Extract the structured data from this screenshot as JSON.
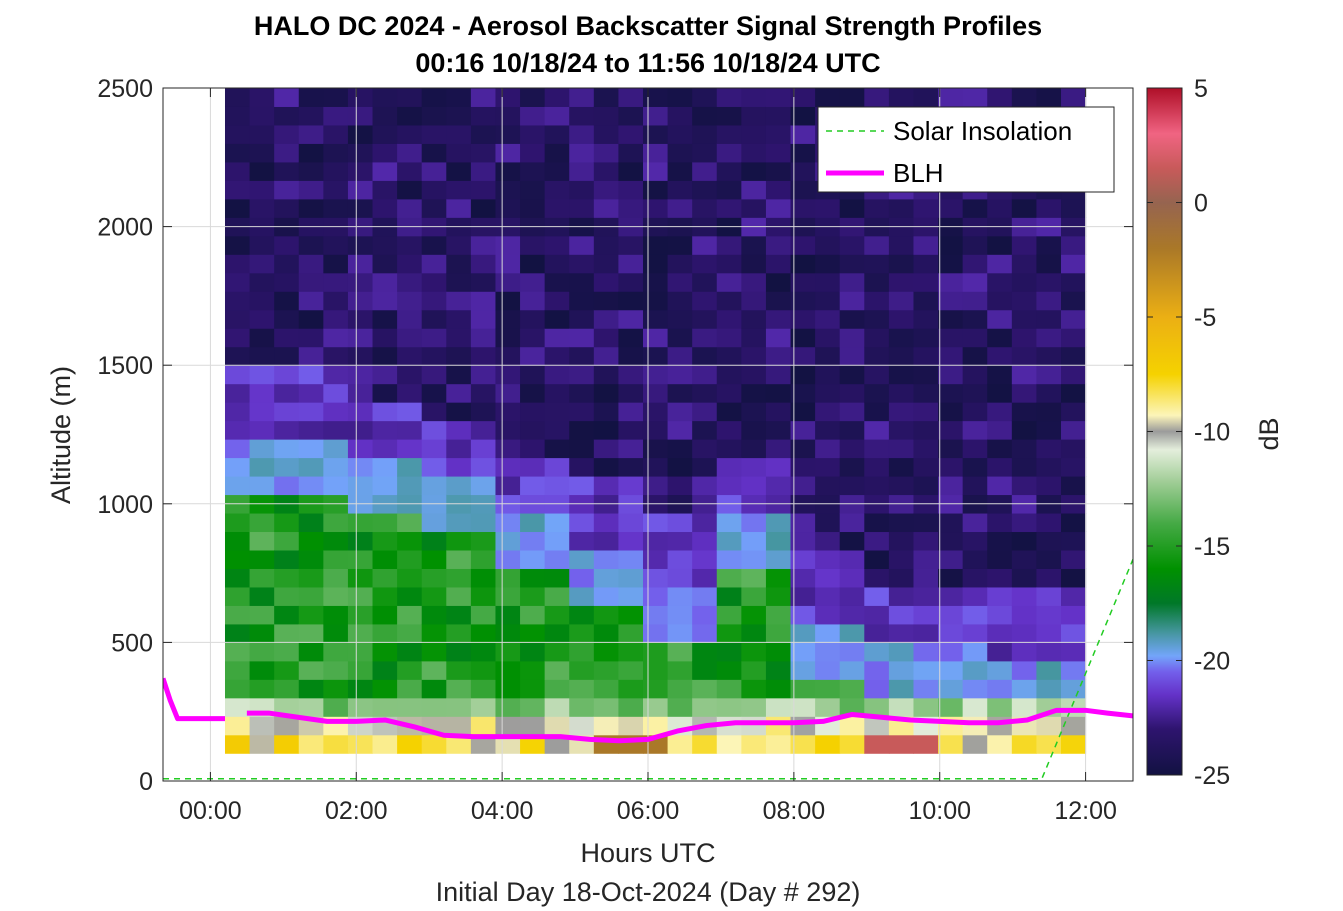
{
  "chart_data": {
    "type": "heatmap",
    "title": "HALO DC 2024 - Aerosol Backscatter Signal Strength Profiles",
    "subtitle": "00:16 10/18/24 to 11:56 10/18/24  UTC",
    "xlabel": "Hours UTC",
    "ylabel": "Altitude (m)",
    "footer": "Initial Day 18-Oct-2024 (Day # 292)",
    "xlim": [
      -0.65,
      12.65
    ],
    "ylim": [
      0,
      2500
    ],
    "x_ticks": [
      0,
      2,
      4,
      6,
      8,
      10,
      12
    ],
    "x_tick_labels": [
      "00:00",
      "02:00",
      "04:00",
      "06:00",
      "08:00",
      "10:00",
      "12:00"
    ],
    "y_ticks": [
      0,
      500,
      1000,
      1500,
      2000,
      2500
    ],
    "y_tick_labels": [
      "0",
      "500",
      "1000",
      "1500",
      "2000",
      "2500"
    ],
    "grid": true,
    "colorbar": {
      "label": "dB",
      "range": [
        -25,
        5
      ],
      "ticks": [
        5,
        0,
        -5,
        -10,
        -15,
        -20,
        -25
      ],
      "tick_labels": [
        "5",
        "0",
        "-5",
        "-10",
        "-15",
        "-20",
        "-25"
      ]
    },
    "heatmap": {
      "x_start_hour": 0.2,
      "x_end_hour": 12.0,
      "altitude_min": 100,
      "altitude_max": 2500,
      "note_values": "signal strength in dB, estimated per altitude band and time"
    },
    "legend": {
      "placement": "top-right",
      "entries": [
        {
          "label": "Solar Insolation",
          "color": "#22cc22",
          "style": "dashed"
        },
        {
          "label": "BLH",
          "color": "#ff00ff",
          "style": "solid"
        }
      ]
    },
    "series": [
      {
        "name": "BLH",
        "color": "#ff00ff",
        "segments": [
          {
            "x": [
              -0.65,
              -0.55,
              -0.45,
              0.2
            ],
            "y": [
              370,
              290,
              225,
              225
            ]
          },
          {
            "x": [
              0.5,
              0.8,
              1.2,
              1.6,
              2.0,
              2.4,
              2.8,
              3.2,
              3.6,
              4.0,
              4.4,
              4.8,
              5.2,
              5.6,
              6.0,
              6.4,
              6.8,
              7.2,
              7.6,
              8.0,
              8.4,
              8.8,
              9.2,
              9.6,
              10.0,
              10.4,
              10.8,
              11.2,
              11.6,
              12.0,
              12.3,
              12.65
            ],
            "y": [
              245,
              245,
              230,
              215,
              215,
              220,
              195,
              165,
              160,
              160,
              160,
              160,
              150,
              145,
              150,
              180,
              200,
              210,
              210,
              210,
              215,
              240,
              230,
              220,
              215,
              210,
              210,
              220,
              255,
              255,
              245,
              235
            ]
          }
        ]
      },
      {
        "name": "Solar Insolation",
        "color": "#22cc22",
        "x": [
          -0.65,
          11.4,
          12.65
        ],
        "y": [
          8,
          8,
          800
        ]
      }
    ]
  }
}
